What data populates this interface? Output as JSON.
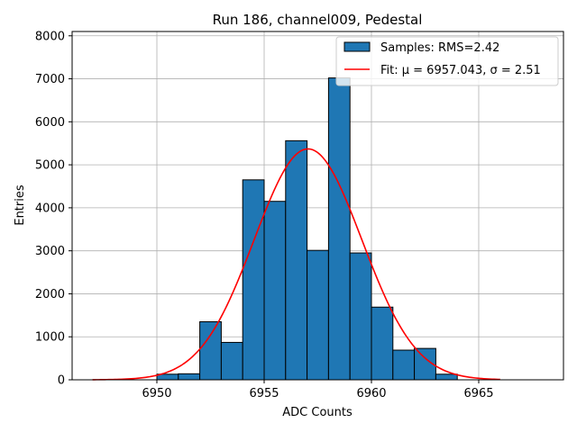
{
  "chart_data": {
    "type": "bar",
    "title": "Run 186, channel009, Pedestal",
    "xlabel": "ADC Counts",
    "ylabel": "Entries",
    "xlim": [
      6946.05,
      6968.95
    ],
    "ylim": [
      0,
      8100
    ],
    "xticks": [
      6950,
      6955,
      6960,
      6965
    ],
    "yticks": [
      0,
      1000,
      2000,
      3000,
      4000,
      5000,
      6000,
      7000,
      8000
    ],
    "grid": true,
    "legend_position": "top-right",
    "histogram": {
      "name": "Samples: RMS=2.42",
      "color": "#1f77b4",
      "edge_color": "#000000",
      "bin_edges": [
        6950,
        6951,
        6952,
        6953,
        6954,
        6955,
        6956,
        6957,
        6958,
        6959,
        6960,
        6961,
        6962,
        6963,
        6964
      ],
      "values": [
        130,
        140,
        1350,
        870,
        4650,
        4150,
        5560,
        3010,
        7020,
        2950,
        1690,
        690,
        730,
        130
      ]
    },
    "fit": {
      "name": "Fit: μ = 6957.043, σ = 2.51",
      "color": "#ff0000",
      "mu": 6957.043,
      "sigma": 2.51,
      "amplitude": 5370,
      "x_range": [
        6947,
        6966
      ]
    }
  }
}
